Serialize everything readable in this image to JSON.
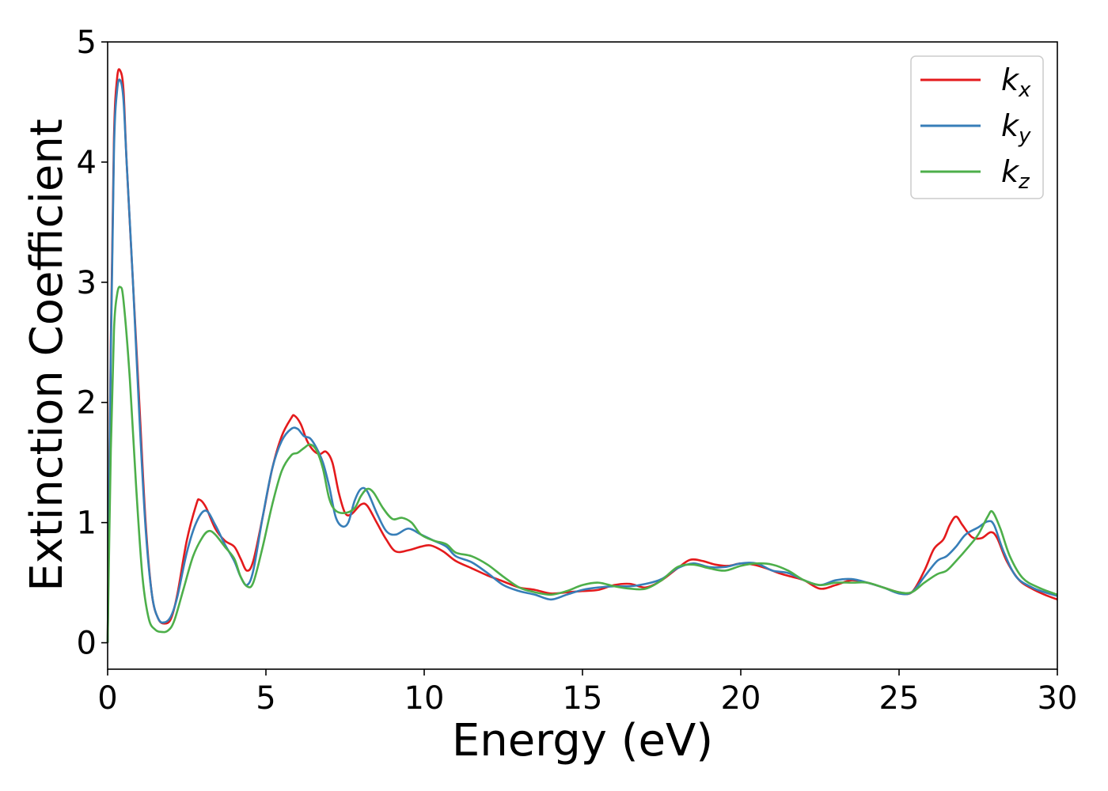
{
  "chart_data": {
    "type": "line",
    "title": "",
    "xlabel": "Energy (eV)",
    "ylabel": "Extinction Coefficient",
    "xlim": [
      0,
      30
    ],
    "ylim": [
      -0.22,
      5.0
    ],
    "xticks": [
      0,
      5,
      10,
      15,
      20,
      25,
      30
    ],
    "yticks": [
      0,
      1,
      2,
      3,
      4,
      5
    ],
    "grid": false,
    "legend_position": "top-right",
    "series": [
      {
        "name": "k",
        "sub": "x",
        "color": "#e41a1c",
        "points": [
          [
            0,
            0
          ],
          [
            0.1,
            2.5
          ],
          [
            0.2,
            4.2
          ],
          [
            0.3,
            4.7
          ],
          [
            0.4,
            4.76
          ],
          [
            0.5,
            4.6
          ],
          [
            0.6,
            4.0
          ],
          [
            0.8,
            3.0
          ],
          [
            1.0,
            2.0
          ],
          [
            1.2,
            1.0
          ],
          [
            1.4,
            0.4
          ],
          [
            1.6,
            0.2
          ],
          [
            1.8,
            0.16
          ],
          [
            2.0,
            0.2
          ],
          [
            2.2,
            0.4
          ],
          [
            2.5,
            0.85
          ],
          [
            2.8,
            1.15
          ],
          [
            2.9,
            1.19
          ],
          [
            3.1,
            1.13
          ],
          [
            3.4,
            0.95
          ],
          [
            3.7,
            0.85
          ],
          [
            4.0,
            0.8
          ],
          [
            4.2,
            0.7
          ],
          [
            4.4,
            0.6
          ],
          [
            4.6,
            0.68
          ],
          [
            4.9,
            1.05
          ],
          [
            5.2,
            1.45
          ],
          [
            5.5,
            1.72
          ],
          [
            5.8,
            1.87
          ],
          [
            5.9,
            1.89
          ],
          [
            6.1,
            1.82
          ],
          [
            6.3,
            1.68
          ],
          [
            6.5,
            1.6
          ],
          [
            6.7,
            1.57
          ],
          [
            6.9,
            1.59
          ],
          [
            7.1,
            1.5
          ],
          [
            7.3,
            1.25
          ],
          [
            7.5,
            1.08
          ],
          [
            7.7,
            1.07
          ],
          [
            8.0,
            1.15
          ],
          [
            8.2,
            1.14
          ],
          [
            8.5,
            1.0
          ],
          [
            8.8,
            0.86
          ],
          [
            9.1,
            0.76
          ],
          [
            9.5,
            0.77
          ],
          [
            9.9,
            0.8
          ],
          [
            10.2,
            0.81
          ],
          [
            10.6,
            0.76
          ],
          [
            11.0,
            0.68
          ],
          [
            11.5,
            0.62
          ],
          [
            12.0,
            0.56
          ],
          [
            12.5,
            0.51
          ],
          [
            13.0,
            0.46
          ],
          [
            13.5,
            0.44
          ],
          [
            14.0,
            0.41
          ],
          [
            14.5,
            0.42
          ],
          [
            15.0,
            0.43
          ],
          [
            15.5,
            0.44
          ],
          [
            16.0,
            0.48
          ],
          [
            16.5,
            0.49
          ],
          [
            17.0,
            0.46
          ],
          [
            17.5,
            0.52
          ],
          [
            18.0,
            0.62
          ],
          [
            18.4,
            0.69
          ],
          [
            18.8,
            0.68
          ],
          [
            19.2,
            0.65
          ],
          [
            19.6,
            0.64
          ],
          [
            20.0,
            0.66
          ],
          [
            20.4,
            0.65
          ],
          [
            20.8,
            0.62
          ],
          [
            21.2,
            0.58
          ],
          [
            21.6,
            0.55
          ],
          [
            22.0,
            0.52
          ],
          [
            22.5,
            0.45
          ],
          [
            23.0,
            0.48
          ],
          [
            23.5,
            0.52
          ],
          [
            24.0,
            0.5
          ],
          [
            24.5,
            0.46
          ],
          [
            25.0,
            0.42
          ],
          [
            25.4,
            0.42
          ],
          [
            25.8,
            0.6
          ],
          [
            26.1,
            0.78
          ],
          [
            26.4,
            0.86
          ],
          [
            26.6,
            0.98
          ],
          [
            26.8,
            1.05
          ],
          [
            27.0,
            0.98
          ],
          [
            27.3,
            0.88
          ],
          [
            27.6,
            0.87
          ],
          [
            27.9,
            0.92
          ],
          [
            28.1,
            0.87
          ],
          [
            28.4,
            0.68
          ],
          [
            28.8,
            0.52
          ],
          [
            29.2,
            0.45
          ],
          [
            29.6,
            0.4
          ],
          [
            30.0,
            0.36
          ]
        ]
      },
      {
        "name": "k",
        "sub": "y",
        "color": "#377eb8",
        "points": [
          [
            0,
            0
          ],
          [
            0.1,
            2.4
          ],
          [
            0.2,
            4.1
          ],
          [
            0.3,
            4.6
          ],
          [
            0.4,
            4.68
          ],
          [
            0.5,
            4.52
          ],
          [
            0.6,
            4.0
          ],
          [
            0.8,
            3.0
          ],
          [
            1.0,
            1.9
          ],
          [
            1.2,
            0.95
          ],
          [
            1.4,
            0.4
          ],
          [
            1.6,
            0.2
          ],
          [
            1.8,
            0.17
          ],
          [
            2.0,
            0.22
          ],
          [
            2.2,
            0.38
          ],
          [
            2.5,
            0.75
          ],
          [
            2.8,
            1.0
          ],
          [
            3.1,
            1.1
          ],
          [
            3.4,
            0.98
          ],
          [
            3.7,
            0.82
          ],
          [
            4.0,
            0.68
          ],
          [
            4.2,
            0.55
          ],
          [
            4.4,
            0.48
          ],
          [
            4.6,
            0.6
          ],
          [
            4.9,
            1.05
          ],
          [
            5.2,
            1.45
          ],
          [
            5.5,
            1.68
          ],
          [
            5.8,
            1.78
          ],
          [
            6.0,
            1.78
          ],
          [
            6.2,
            1.72
          ],
          [
            6.4,
            1.7
          ],
          [
            6.6,
            1.62
          ],
          [
            6.8,
            1.5
          ],
          [
            7.0,
            1.3
          ],
          [
            7.2,
            1.05
          ],
          [
            7.4,
            0.97
          ],
          [
            7.6,
            1.0
          ],
          [
            7.8,
            1.18
          ],
          [
            8.0,
            1.28
          ],
          [
            8.2,
            1.26
          ],
          [
            8.5,
            1.08
          ],
          [
            8.8,
            0.93
          ],
          [
            9.1,
            0.9
          ],
          [
            9.5,
            0.95
          ],
          [
            9.9,
            0.9
          ],
          [
            10.3,
            0.85
          ],
          [
            10.7,
            0.8
          ],
          [
            11.0,
            0.72
          ],
          [
            11.5,
            0.67
          ],
          [
            12.0,
            0.58
          ],
          [
            12.5,
            0.48
          ],
          [
            13.0,
            0.43
          ],
          [
            13.5,
            0.4
          ],
          [
            14.0,
            0.36
          ],
          [
            14.5,
            0.4
          ],
          [
            15.0,
            0.44
          ],
          [
            15.5,
            0.46
          ],
          [
            16.0,
            0.47
          ],
          [
            16.5,
            0.47
          ],
          [
            17.0,
            0.49
          ],
          [
            17.5,
            0.53
          ],
          [
            18.0,
            0.62
          ],
          [
            18.5,
            0.66
          ],
          [
            19.0,
            0.63
          ],
          [
            19.5,
            0.63
          ],
          [
            20.0,
            0.66
          ],
          [
            20.5,
            0.66
          ],
          [
            21.0,
            0.6
          ],
          [
            21.5,
            0.58
          ],
          [
            22.0,
            0.52
          ],
          [
            22.5,
            0.48
          ],
          [
            23.0,
            0.52
          ],
          [
            23.5,
            0.53
          ],
          [
            24.0,
            0.5
          ],
          [
            24.5,
            0.46
          ],
          [
            25.0,
            0.41
          ],
          [
            25.4,
            0.42
          ],
          [
            25.8,
            0.55
          ],
          [
            26.2,
            0.68
          ],
          [
            26.5,
            0.72
          ],
          [
            26.8,
            0.8
          ],
          [
            27.1,
            0.9
          ],
          [
            27.5,
            0.96
          ],
          [
            27.8,
            1.01
          ],
          [
            28.0,
            0.98
          ],
          [
            28.3,
            0.76
          ],
          [
            28.7,
            0.55
          ],
          [
            29.2,
            0.46
          ],
          [
            29.6,
            0.42
          ],
          [
            30.0,
            0.39
          ]
        ]
      },
      {
        "name": "k",
        "sub": "z",
        "color": "#4daf4a",
        "points": [
          [
            0,
            0
          ],
          [
            0.1,
            1.6
          ],
          [
            0.2,
            2.6
          ],
          [
            0.3,
            2.9
          ],
          [
            0.4,
            2.96
          ],
          [
            0.5,
            2.85
          ],
          [
            0.7,
            2.2
          ],
          [
            0.9,
            1.3
          ],
          [
            1.1,
            0.55
          ],
          [
            1.3,
            0.2
          ],
          [
            1.5,
            0.11
          ],
          [
            1.7,
            0.09
          ],
          [
            1.9,
            0.1
          ],
          [
            2.1,
            0.18
          ],
          [
            2.4,
            0.45
          ],
          [
            2.7,
            0.72
          ],
          [
            3.0,
            0.88
          ],
          [
            3.2,
            0.93
          ],
          [
            3.4,
            0.9
          ],
          [
            3.7,
            0.8
          ],
          [
            4.0,
            0.7
          ],
          [
            4.2,
            0.55
          ],
          [
            4.4,
            0.47
          ],
          [
            4.6,
            0.5
          ],
          [
            4.9,
            0.8
          ],
          [
            5.2,
            1.15
          ],
          [
            5.5,
            1.43
          ],
          [
            5.8,
            1.56
          ],
          [
            6.0,
            1.58
          ],
          [
            6.2,
            1.62
          ],
          [
            6.4,
            1.65
          ],
          [
            6.6,
            1.6
          ],
          [
            6.8,
            1.45
          ],
          [
            7.0,
            1.2
          ],
          [
            7.2,
            1.1
          ],
          [
            7.5,
            1.08
          ],
          [
            7.8,
            1.12
          ],
          [
            8.0,
            1.22
          ],
          [
            8.2,
            1.28
          ],
          [
            8.4,
            1.25
          ],
          [
            8.7,
            1.12
          ],
          [
            9.0,
            1.03
          ],
          [
            9.3,
            1.04
          ],
          [
            9.6,
            1.0
          ],
          [
            9.9,
            0.9
          ],
          [
            10.3,
            0.85
          ],
          [
            10.7,
            0.82
          ],
          [
            11.0,
            0.75
          ],
          [
            11.5,
            0.72
          ],
          [
            12.0,
            0.65
          ],
          [
            12.5,
            0.55
          ],
          [
            13.0,
            0.46
          ],
          [
            13.5,
            0.42
          ],
          [
            14.0,
            0.4
          ],
          [
            14.5,
            0.43
          ],
          [
            15.0,
            0.48
          ],
          [
            15.5,
            0.5
          ],
          [
            16.0,
            0.47
          ],
          [
            16.5,
            0.45
          ],
          [
            17.0,
            0.45
          ],
          [
            17.5,
            0.52
          ],
          [
            18.0,
            0.63
          ],
          [
            18.5,
            0.65
          ],
          [
            19.0,
            0.62
          ],
          [
            19.5,
            0.6
          ],
          [
            20.0,
            0.64
          ],
          [
            20.5,
            0.66
          ],
          [
            21.0,
            0.65
          ],
          [
            21.5,
            0.6
          ],
          [
            22.0,
            0.52
          ],
          [
            22.5,
            0.48
          ],
          [
            23.0,
            0.5
          ],
          [
            23.5,
            0.5
          ],
          [
            24.0,
            0.5
          ],
          [
            24.5,
            0.46
          ],
          [
            25.0,
            0.42
          ],
          [
            25.4,
            0.42
          ],
          [
            25.8,
            0.5
          ],
          [
            26.2,
            0.57
          ],
          [
            26.5,
            0.6
          ],
          [
            26.8,
            0.68
          ],
          [
            27.2,
            0.8
          ],
          [
            27.5,
            0.9
          ],
          [
            27.8,
            1.05
          ],
          [
            27.95,
            1.09
          ],
          [
            28.2,
            0.95
          ],
          [
            28.5,
            0.72
          ],
          [
            28.9,
            0.54
          ],
          [
            29.4,
            0.46
          ],
          [
            30.0,
            0.4
          ]
        ]
      }
    ]
  }
}
